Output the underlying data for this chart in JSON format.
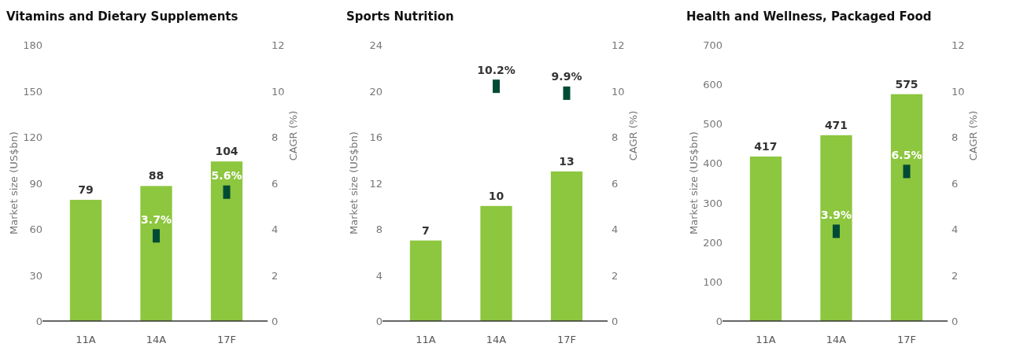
{
  "chart_data": [
    {
      "type": "bar",
      "title": "Vitamins and Dietary Supplements",
      "ylabel": "Market size (US$bn)",
      "y2label": "CAGR (%)",
      "categories": [
        "11A",
        "14A",
        "17F"
      ],
      "ylim": [
        0,
        180
      ],
      "yticks": [
        0,
        30,
        60,
        90,
        120,
        150,
        180
      ],
      "y2lim": [
        0,
        12
      ],
      "y2ticks": [
        0,
        2,
        4,
        6,
        8,
        10,
        12
      ],
      "data_labels": true,
      "grid": false,
      "series": [
        {
          "color": "#8dc63f",
          "values": [
            79,
            88,
            104
          ]
        },
        {
          "type": "scatter",
          "axis": "y2",
          "color": "#004b35",
          "marker": "square",
          "x": [
            "14A",
            "17F"
          ],
          "values": [
            3.7,
            5.6
          ],
          "value_labels": [
            "3.7%",
            "5.6%"
          ]
        }
      ]
    },
    {
      "type": "bar",
      "title": "Sports Nutrition",
      "ylabel": "Market size (US$bn)",
      "y2label": "CAGR (%)",
      "categories": [
        "11A",
        "14A",
        "17F"
      ],
      "ylim": [
        0,
        24
      ],
      "yticks": [
        0,
        4,
        8,
        12,
        16,
        20,
        24
      ],
      "y2lim": [
        0,
        12
      ],
      "y2ticks": [
        0,
        2,
        4,
        6,
        8,
        10,
        12
      ],
      "data_labels": true,
      "grid": false,
      "series": [
        {
          "color": "#8dc63f",
          "values": [
            7,
            10,
            13
          ]
        },
        {
          "type": "scatter",
          "axis": "y2",
          "color": "#004b35",
          "marker": "square",
          "x": [
            "14A",
            "17F"
          ],
          "values": [
            10.2,
            9.9
          ],
          "value_labels": [
            "10.2%",
            "9.9%"
          ]
        }
      ]
    },
    {
      "type": "bar",
      "title": "Health and Wellness, Packaged Food",
      "ylabel": "Market size (US$bn)",
      "y2label": "CAGR (%)",
      "categories": [
        "11A",
        "14A",
        "17F"
      ],
      "ylim": [
        0,
        700
      ],
      "yticks": [
        0,
        100,
        200,
        300,
        400,
        500,
        600,
        700
      ],
      "y2lim": [
        0,
        12
      ],
      "y2ticks": [
        0,
        2,
        4,
        6,
        8,
        10,
        12
      ],
      "data_labels": true,
      "grid": false,
      "series": [
        {
          "color": "#8dc63f",
          "values": [
            417,
            471,
            575
          ]
        },
        {
          "type": "scatter",
          "axis": "y2",
          "color": "#004b35",
          "marker": "square",
          "x": [
            "14A",
            "17F"
          ],
          "values": [
            3.9,
            6.5
          ],
          "value_labels": [
            "3.9%",
            "6.5%"
          ]
        }
      ]
    }
  ]
}
